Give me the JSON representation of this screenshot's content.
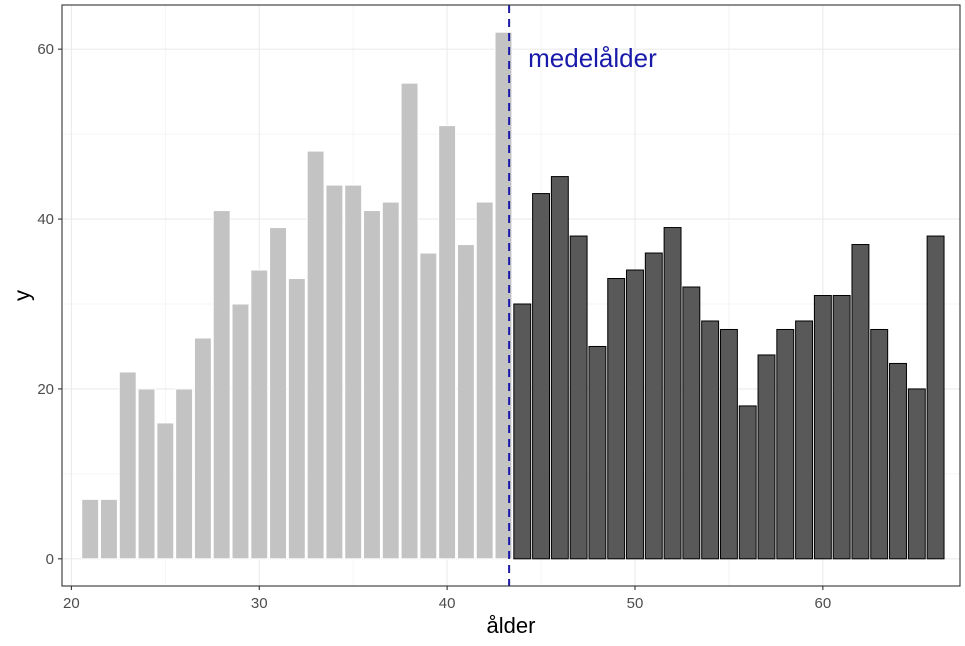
{
  "chart_data": {
    "type": "bar",
    "title": "",
    "xlabel": "ålder",
    "ylabel": "y",
    "xlim": [
      19.5,
      67.3
    ],
    "ylim": [
      -3.2,
      65.2
    ],
    "xticks": [
      20,
      30,
      40,
      50,
      60
    ],
    "yticks": [
      0,
      20,
      40,
      60
    ],
    "grid": true,
    "legend": "none",
    "bar_width": 0.9,
    "series": [
      {
        "group": "below-mean",
        "color": "#c3c3c3",
        "outline": "#ffffff",
        "x": [
          21,
          22,
          23,
          24,
          25,
          26,
          27,
          28,
          29,
          30,
          31,
          32,
          33,
          34,
          35,
          36,
          37,
          38,
          39,
          40,
          41,
          42,
          43
        ],
        "values": [
          7,
          7,
          22,
          20,
          16,
          20,
          26,
          41,
          30,
          34,
          39,
          33,
          48,
          44,
          44,
          41,
          42,
          56,
          36,
          51,
          37,
          42,
          62
        ]
      },
      {
        "group": "above-mean",
        "color": "#595959",
        "outline": "#000000",
        "x": [
          44,
          45,
          46,
          47,
          48,
          49,
          50,
          51,
          52,
          53,
          54,
          55,
          56,
          57,
          58,
          59,
          60,
          61,
          62,
          63,
          64,
          65,
          66
        ],
        "values": [
          30,
          43,
          45,
          38,
          25,
          33,
          34,
          36,
          39,
          32,
          28,
          27,
          18,
          24,
          27,
          28,
          31,
          31,
          37,
          27,
          23,
          20,
          38
        ]
      }
    ],
    "reference_line": {
      "x": 43.3,
      "style": "dashed",
      "color": "#1a1aaa",
      "label": "medelålder",
      "label_color": "#1a1aaa"
    }
  }
}
